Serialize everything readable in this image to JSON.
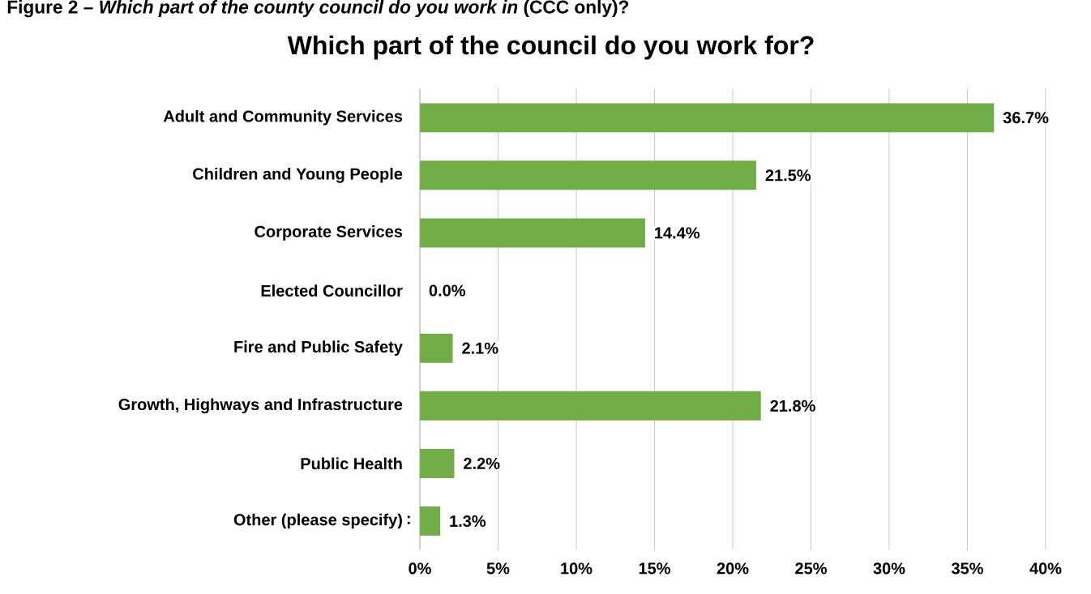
{
  "chart_data": {
    "type": "bar",
    "orientation": "horizontal",
    "title": "Which part of the council do you work for?",
    "annotations": [
      "Figure 2 – *Which part of the county council do you work in* (CCC only)?",
      ":"
    ],
    "categories": [
      "Adult and Community Services",
      "Children and Young People",
      "Corporate Services",
      "Elected Councillor",
      "Fire and Public Safety",
      "Growth, Highways and Infrastructure",
      "Public Health",
      "Other (please specify)"
    ],
    "values": [
      36.7,
      21.5,
      14.4,
      0.0,
      2.1,
      21.8,
      2.2,
      1.3
    ],
    "value_labels": [
      "36.7%",
      "21.5%",
      "14.4%",
      "0.0%",
      "2.1%",
      "21.8%",
      "2.2%",
      "1.3%"
    ],
    "color": "#70ad47",
    "xlim": [
      0,
      40
    ],
    "xticks": [
      {
        "value": 0,
        "label": "0%"
      },
      {
        "value": 5,
        "label": "5%"
      },
      {
        "value": 10,
        "label": "10%"
      },
      {
        "value": 15,
        "label": "15%"
      },
      {
        "value": 20,
        "label": "20%"
      },
      {
        "value": 25,
        "label": "25%"
      },
      {
        "value": 30,
        "label": "30%"
      },
      {
        "value": 35,
        "label": "35%"
      },
      {
        "value": 40,
        "label": "40%"
      }
    ],
    "grid": "x"
  }
}
